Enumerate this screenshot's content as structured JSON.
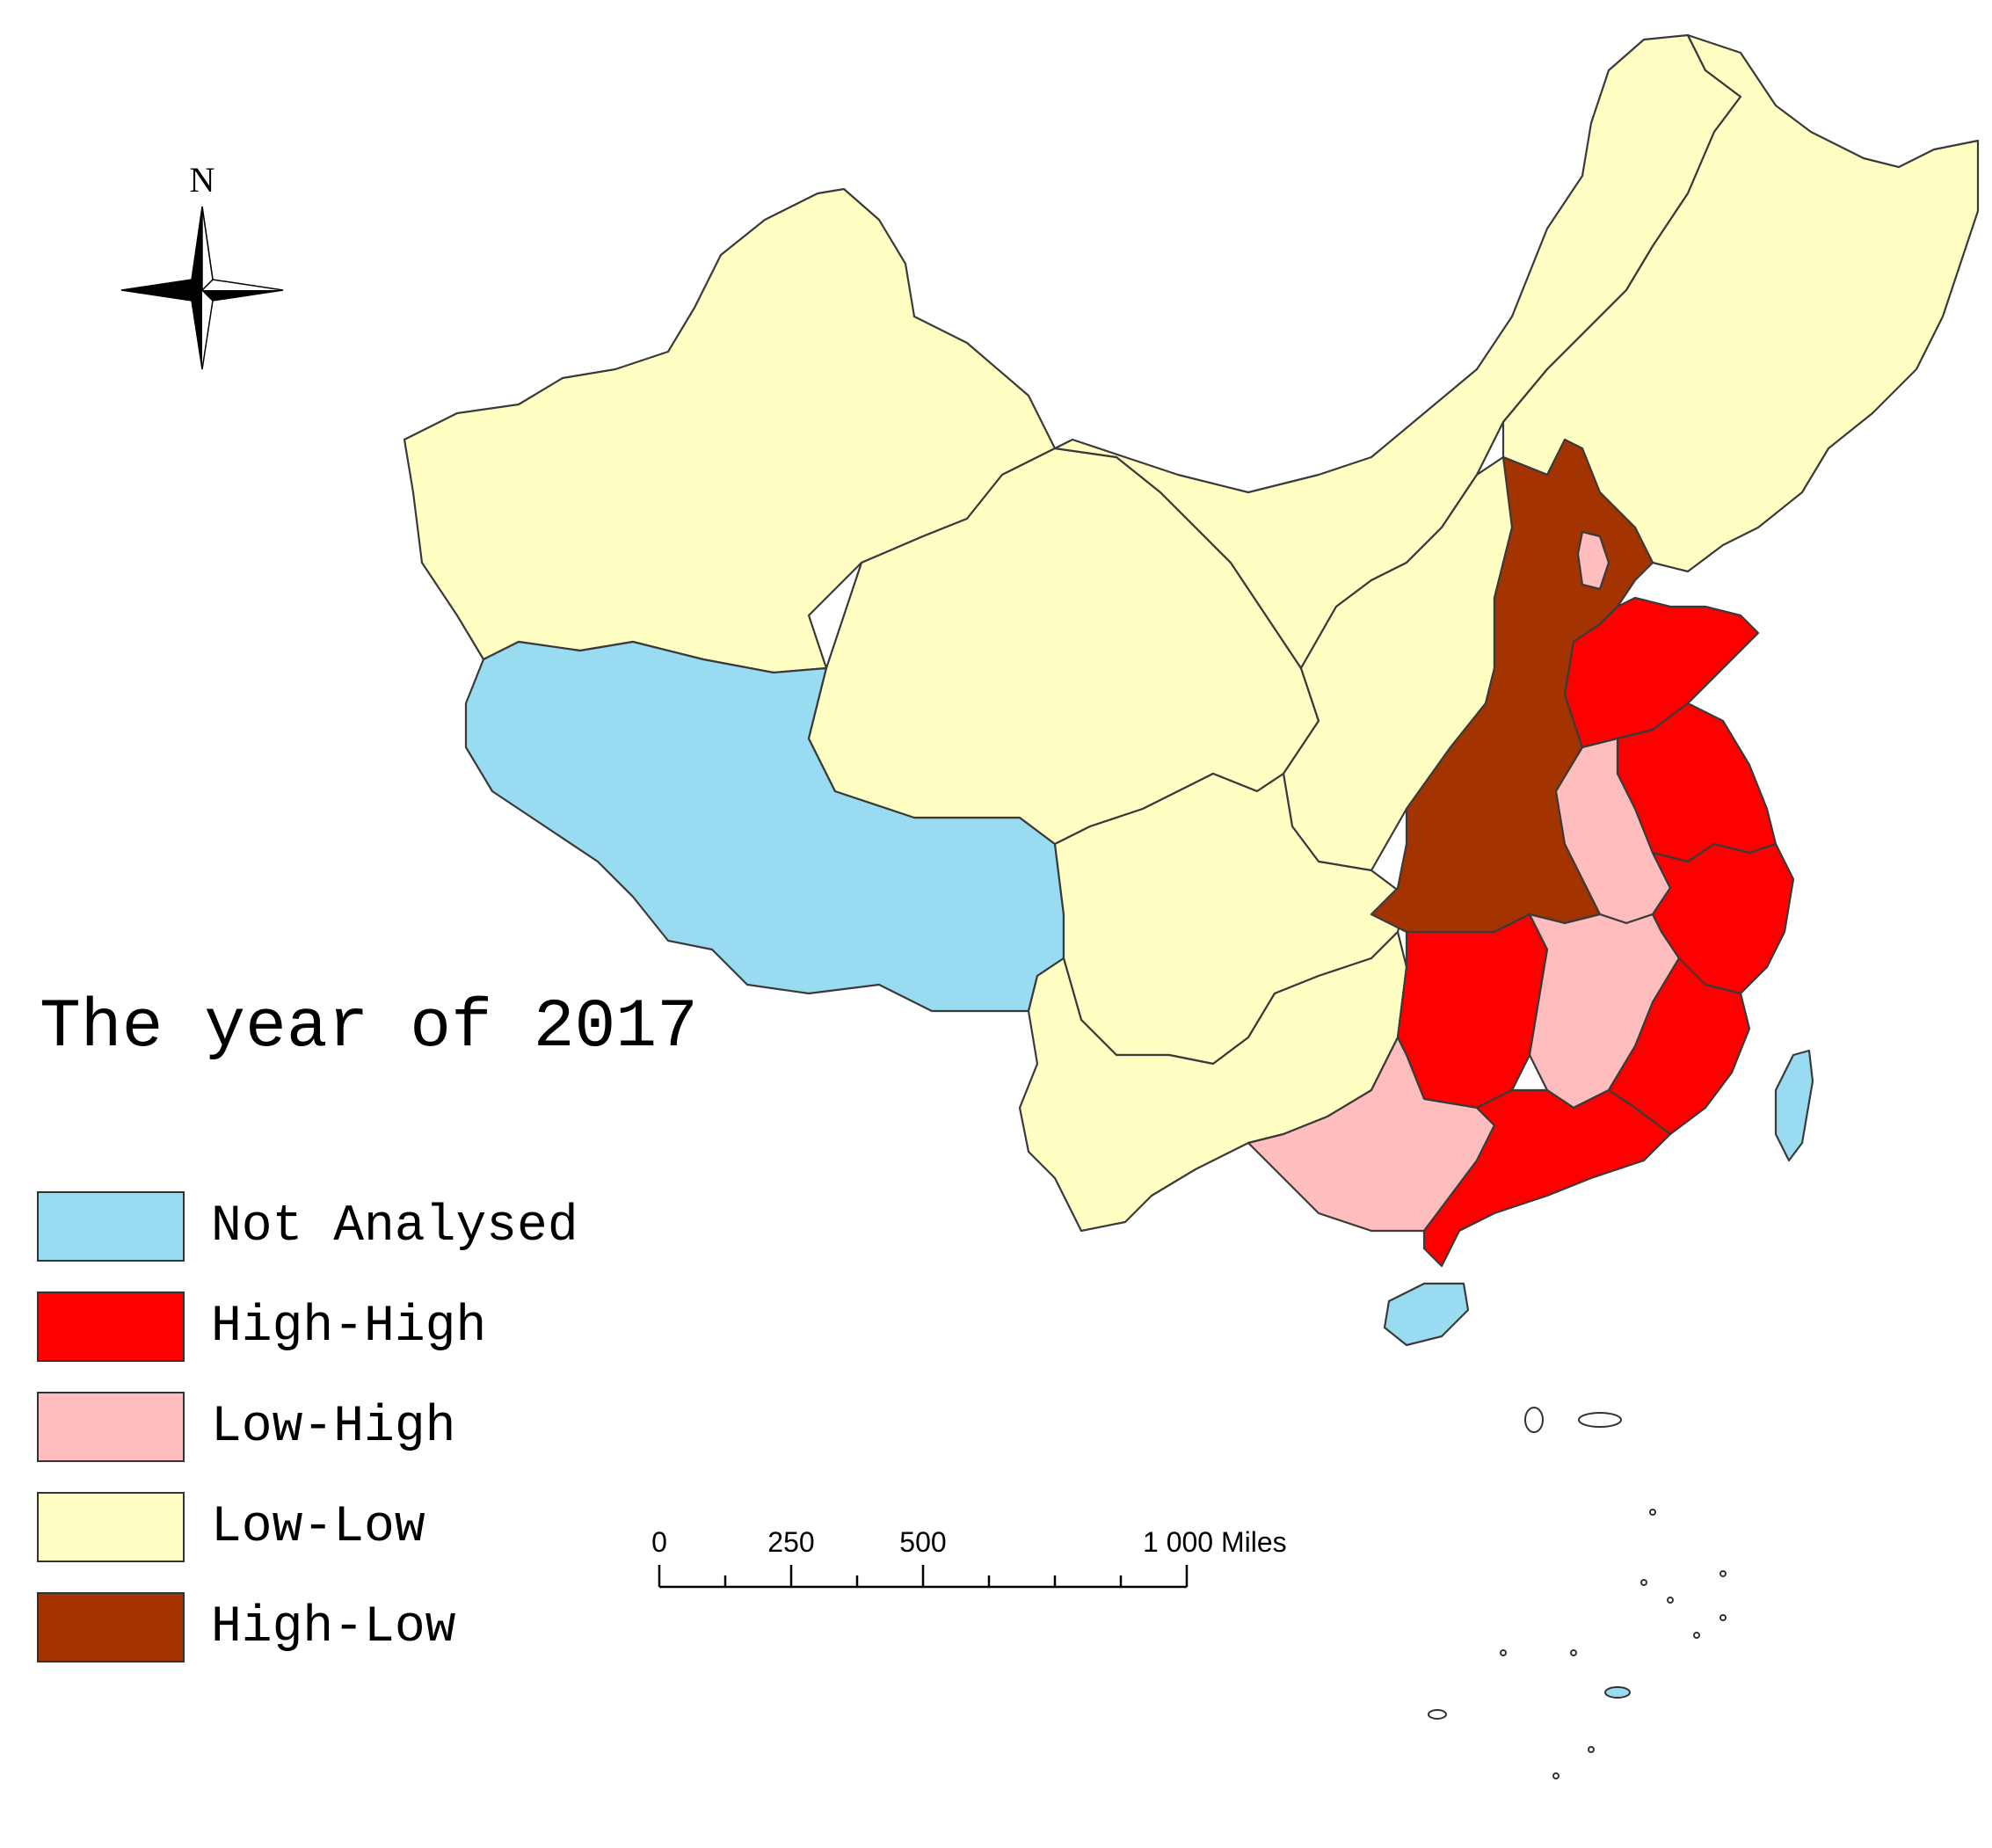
{
  "title": "The year of 2017",
  "north_label": "N",
  "legend": [
    {
      "label": "Not Analysed",
      "color": "#99dbf0"
    },
    {
      "label": "High-High",
      "color": "#ff0000"
    },
    {
      "label": "Low-High",
      "color": "#ffbdbd"
    },
    {
      "label": "Low-Low",
      "color": "#ffffc4"
    },
    {
      "label": "High-Low",
      "color": "#a33300"
    }
  ],
  "scale_bar": {
    "ticks": [
      "0",
      "250",
      "500",
      "1 000 Miles"
    ]
  },
  "regions": {
    "northeast": "Low-Low",
    "inner_mongolia": "Low-Low",
    "xinjiang": "Low-Low",
    "qinghai_gansu_ningxia": "Low-Low",
    "tibet": "Not Analysed",
    "sichuan_chongqing": "Low-Low",
    "shaanxi_shanxi": "Low-Low",
    "yunnan_guizhou": "Low-Low",
    "hebei_henan_hubei": "High-Low",
    "tianjin": "Low-High",
    "shandong": "High-High",
    "jiangsu_shanghai": "High-High",
    "zhejiang": "High-High",
    "fujian": "High-High",
    "hunan": "High-High",
    "guangdong": "High-High",
    "anhui": "Low-High",
    "jiangxi": "Low-High",
    "guangxi": "Low-High",
    "hainan": "Not Analysed",
    "taiwan": "Not Analysed"
  }
}
